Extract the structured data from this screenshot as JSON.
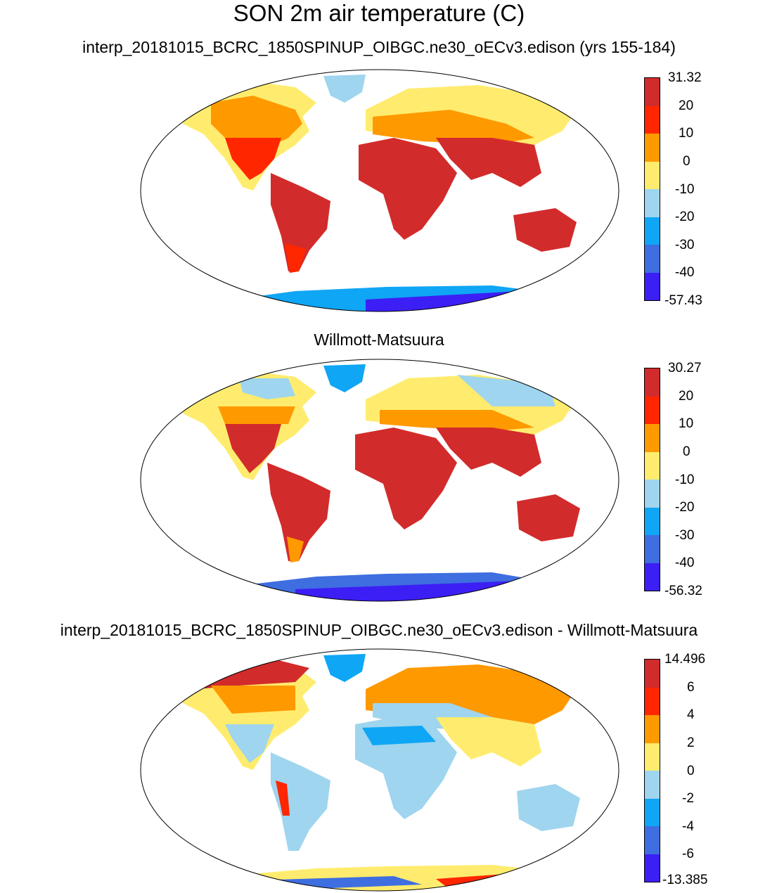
{
  "main_title": "SON 2m air temperature (C)",
  "panels": [
    {
      "id": "model",
      "subtitle": "interp_20181015_BCRC_1850SPINUP_OIBGC.ne30_oECv3.edison (yrs 155-184)",
      "colorbar": {
        "colors": [
          "#d22b2b",
          "#ff2600",
          "#ff9900",
          "#ffec6e",
          "#9fd5ee",
          "#0fa6f5",
          "#3e6ee0",
          "#3c1ff5"
        ],
        "labels": [
          "31.32",
          "20",
          "10",
          "0",
          "-10",
          "-20",
          "-30",
          "-40",
          "-57.43"
        ]
      }
    },
    {
      "id": "obs",
      "subtitle": "Willmott-Matsuura",
      "colorbar": {
        "colors": [
          "#d22b2b",
          "#ff2600",
          "#ff9900",
          "#ffec6e",
          "#9fd5ee",
          "#0fa6f5",
          "#3e6ee0",
          "#3c1ff5"
        ],
        "labels": [
          "30.27",
          "20",
          "10",
          "0",
          "-10",
          "-20",
          "-30",
          "-40",
          "-56.32"
        ]
      }
    },
    {
      "id": "diff",
      "subtitle": "interp_20181015_BCRC_1850SPINUP_OIBGC.ne30_oECv3.edison - Willmott-Matsuura",
      "colorbar": {
        "colors": [
          "#d22b2b",
          "#ff2600",
          "#ff9900",
          "#ffec6e",
          "#9fd5ee",
          "#0fa6f5",
          "#3e6ee0",
          "#3c1ff5"
        ],
        "labels": [
          "14.496",
          "6",
          "4",
          "2",
          "0",
          "-2",
          "-4",
          "-6",
          "-13.385"
        ]
      }
    }
  ]
}
